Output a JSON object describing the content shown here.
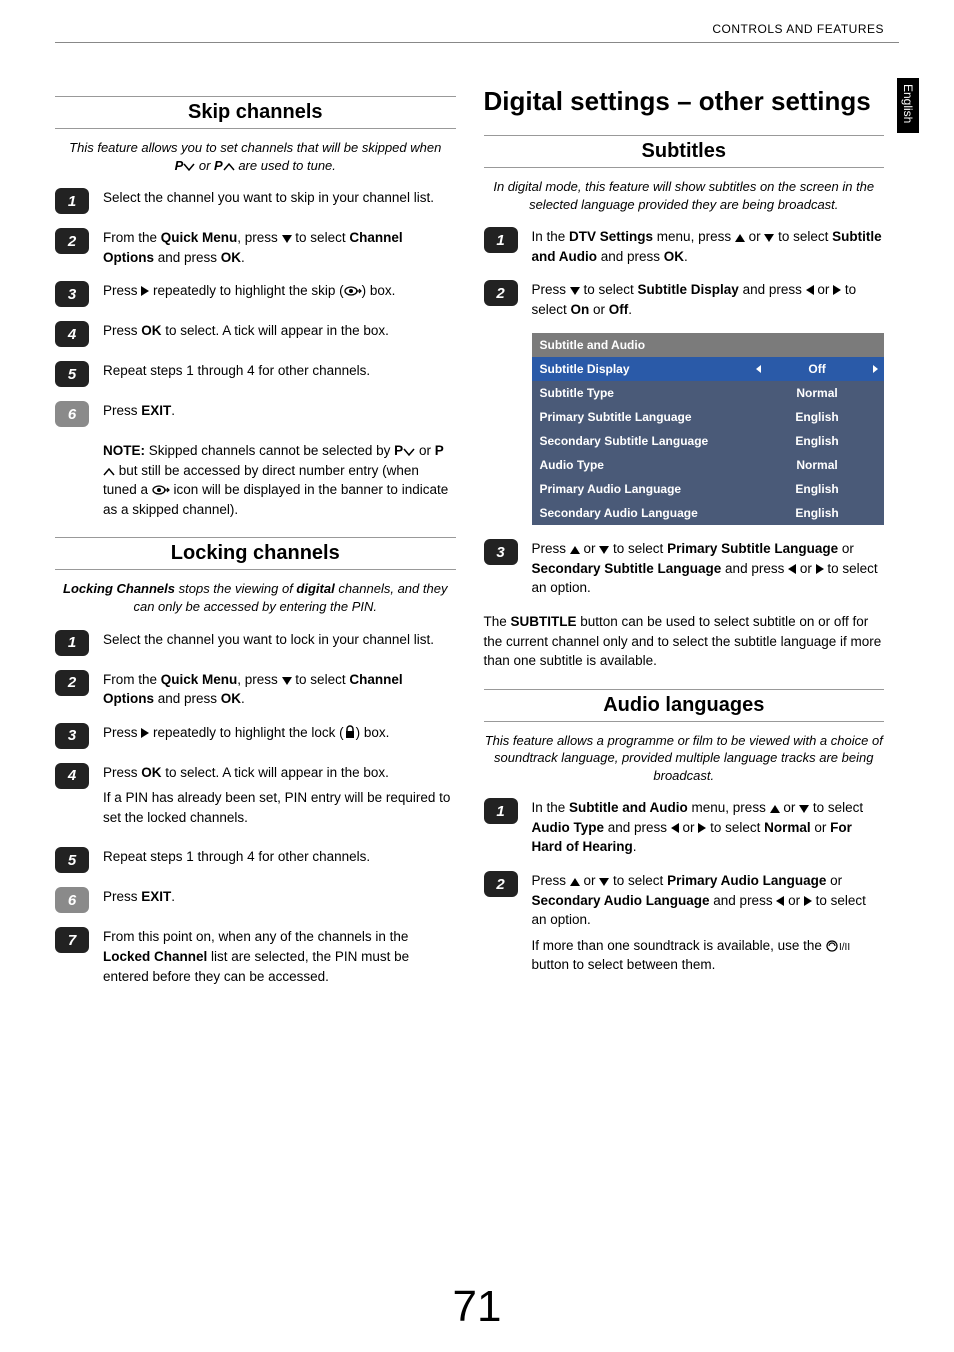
{
  "header": {
    "section": "CONTROLS AND FEATURES",
    "side_tab": "English"
  },
  "page_number": "71",
  "left": {
    "skip": {
      "title": "Skip channels",
      "intro_a": "This feature allows you to set channels that will be skipped when",
      "intro_b": "P",
      "intro_c": " or ",
      "intro_d": "P",
      "intro_e": " are used to tune.",
      "s1": "Select the channel you want to skip in your channel list.",
      "s2_a": "From the ",
      "s2_b": "Quick Menu",
      "s2_c": ", press ",
      "s2_d": " to select ",
      "s2_e": "Channel Options",
      "s2_f": " and press ",
      "s2_g": "OK",
      "s2_h": ".",
      "s3_a": "Press ",
      "s3_b": " repeatedly to highlight the skip (",
      "s3_c": ") box.",
      "s4_a": "Press ",
      "s4_b": "OK",
      "s4_c": " to select. A tick will appear in the box.",
      "s5": "Repeat steps 1 through 4 for other channels.",
      "s6_a": "Press ",
      "s6_b": "EXIT",
      "s6_c": ".",
      "note_label": "NOTE:",
      "note_a": " Skipped channels cannot be selected by ",
      "note_b": "P",
      "note_c": " or ",
      "note_d": "P",
      "note_e": " but still be accessed by direct number entry (when tuned a ",
      "note_f": " icon will be displayed in the banner to indicate as a skipped channel)."
    },
    "lock": {
      "title": "Locking channels",
      "intro_a": "Locking Channels",
      "intro_b": " stops the viewing of ",
      "intro_c": "digital",
      "intro_d": " channels, and they can only be accessed by entering the PIN.",
      "s1": "Select the channel you want to lock in your channel list.",
      "s2_a": "From the ",
      "s2_b": "Quick Menu",
      "s2_c": ", press ",
      "s2_d": " to select ",
      "s2_e": "Channel Options",
      "s2_f": " and press ",
      "s2_g": "OK",
      "s2_h": ".",
      "s3_a": "Press ",
      "s3_b": " repeatedly to highlight the lock (",
      "s3_c": ") box.",
      "s4_a": "Press ",
      "s4_b": "OK",
      "s4_c": " to select. A tick will appear in the box.",
      "s4_extra": "If a PIN has already been set, PIN entry will be required to set the locked channels.",
      "s5": "Repeat steps 1 through 4 for other channels.",
      "s6_a": "Press ",
      "s6_b": "EXIT",
      "s6_c": ".",
      "s7_a": "From this point on, when any of the channels in the ",
      "s7_b": "Locked Channel",
      "s7_c": " list are selected, the PIN must be entered before they can be accessed."
    }
  },
  "right": {
    "h1": "Digital settings – other settings",
    "sub": {
      "title": "Subtitles",
      "intro": "In digital mode, this feature will show subtitles on the screen in the selected language provided they are being broadcast.",
      "s1_a": "In the ",
      "s1_b": "DTV Settings",
      "s1_c": " menu, press ",
      "s1_d": " or ",
      "s1_e": " to select ",
      "s1_f": "Subtitle and Audio",
      "s1_g": " and press ",
      "s1_h": "OK",
      "s1_i": ".",
      "s2_a": "Press ",
      "s2_b": " to select ",
      "s2_c": "Subtitle Display",
      "s2_d": " and press ",
      "s2_e": " or ",
      "s2_f": " to select ",
      "s2_g": "On",
      "s2_h": " or ",
      "s2_i": "Off",
      "s2_j": ".",
      "table": {
        "header": "Subtitle and Audio",
        "rows": [
          {
            "label": "Subtitle Display",
            "value": "Off",
            "highlight": true
          },
          {
            "label": "Subtitle Type",
            "value": "Normal",
            "highlight": false
          },
          {
            "label": "Primary Subtitle Language",
            "value": "English",
            "highlight": false
          },
          {
            "label": "Secondary Subtitle Language",
            "value": "English",
            "highlight": false
          },
          {
            "label": "Audio Type",
            "value": "Normal",
            "highlight": false
          },
          {
            "label": "Primary Audio Language",
            "value": "English",
            "highlight": false
          },
          {
            "label": "Secondary Audio Language",
            "value": "English",
            "highlight": false
          }
        ],
        "colors": {
          "header_bg": "#7b7b7b",
          "highlight_bg": "#2a5aa8",
          "row_bg": "#4a5a78",
          "text": "#ffffff"
        }
      },
      "s3_a": "Press ",
      "s3_b": " or ",
      "s3_c": " to select ",
      "s3_d": "Primary Subtitle Language",
      "s3_e": " or ",
      "s3_f": "Secondary Subtitle Language",
      "s3_g": " and press ",
      "s3_h": " or ",
      "s3_i": " to select an option.",
      "body_a": "The ",
      "body_b": "SUBTITLE",
      "body_c": " button can be used to select subtitle on or off for the current channel only and to select the subtitle language if more than one subtitle is available."
    },
    "audio": {
      "title": "Audio languages",
      "intro": "This feature allows a programme or film to be viewed with a choice of soundtrack language, provided multiple language tracks are being broadcast.",
      "s1_a": "In the ",
      "s1_b": "Subtitle and Audio",
      "s1_c": " menu, press ",
      "s1_d": " or ",
      "s1_e": " to select ",
      "s1_f": "Audio Type",
      "s1_g": " and press ",
      "s1_h": " or ",
      "s1_i": " to select ",
      "s1_j": "Normal",
      "s1_k": " or ",
      "s1_l": "For Hard of Hearing",
      "s1_m": ".",
      "s2_a": "Press ",
      "s2_b": " or ",
      "s2_c": " to select ",
      "s2_d": "Primary Audio Language",
      "s2_e": " or ",
      "s2_f": "Secondary Audio Language",
      "s2_g": " and press ",
      "s2_h": " or ",
      "s2_i": " to select an option.",
      "extra_a": "If more than one soundtrack is available, use the ",
      "extra_b": " button to select between them."
    }
  }
}
